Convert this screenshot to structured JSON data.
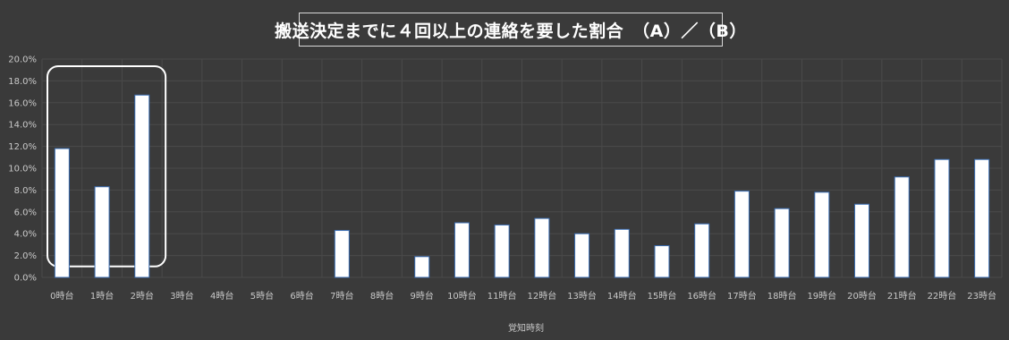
{
  "chart_data": {
    "type": "bar",
    "title": "搬送決定までに４回以上の連絡を要した割合　（A）／（B）",
    "xlabel": "覚知時刻",
    "ylabel": "",
    "categories": [
      "0時台",
      "1時台",
      "2時台",
      "3時台",
      "4時台",
      "5時台",
      "6時台",
      "7時台",
      "8時台",
      "9時台",
      "10時台",
      "11時台",
      "12時台",
      "13時台",
      "14時台",
      "15時台",
      "16時台",
      "17時台",
      "18時台",
      "19時台",
      "20時台",
      "21時台",
      "22時台",
      "23時台"
    ],
    "values": [
      11.8,
      8.3,
      16.7,
      0,
      0,
      0,
      0,
      4.3,
      0,
      1.9,
      5.0,
      4.8,
      5.4,
      4.0,
      4.4,
      2.9,
      4.9,
      7.9,
      6.3,
      7.8,
      6.7,
      9.2,
      10.8,
      10.8
    ],
    "ylim": [
      0,
      20
    ],
    "yticks": [
      "0.0%",
      "2.0%",
      "4.0%",
      "6.0%",
      "8.0%",
      "10.0%",
      "12.0%",
      "14.0%",
      "16.0%",
      "18.0%",
      "20.0%"
    ],
    "ytick_values": [
      0,
      2,
      4,
      6,
      8,
      10,
      12,
      14,
      16,
      18,
      20
    ],
    "grid": true,
    "legend": "none",
    "highlight_range": [
      "0時台",
      "2時台"
    ],
    "colors": {
      "background": "#3a3a3a",
      "bar_fill": "#ffffff",
      "bar_edge": "#3c6fb5",
      "text": "#c8c8c8",
      "highlight": "#ffffff"
    }
  }
}
